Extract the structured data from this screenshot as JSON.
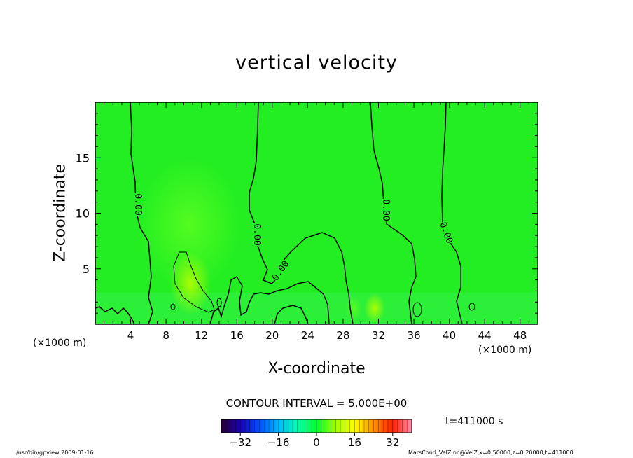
{
  "chart_data": {
    "type": "contour",
    "title": "vertical velocity",
    "xlabel": "X-coordinate",
    "ylabel": "Z-coordinate",
    "x_unit": "(×1000 m)",
    "xlim": [
      0,
      50
    ],
    "ylim": [
      0,
      20
    ],
    "x_ticks": [
      4,
      8,
      12,
      16,
      20,
      24,
      28,
      32,
      36,
      40,
      44,
      48
    ],
    "y_ticks": [
      5,
      10,
      15
    ],
    "contour_interval": "CONTOUR INTERVAL = 5.000E+00",
    "contour_label": "0.00",
    "colorbar": {
      "ticks": [
        -32,
        -16,
        0,
        16,
        32
      ],
      "range": [
        -40,
        40
      ],
      "colors": [
        "#2a0033",
        "#1a00b0",
        "#0050ff",
        "#00b8ff",
        "#00ffb0",
        "#00ff30",
        "#a0ff00",
        "#ffff00",
        "#ff9000",
        "#ff2000",
        "#ff90b0"
      ]
    },
    "time": "t=411000 s",
    "background_color": "#22ee22"
  },
  "footer": {
    "left": "/usr/bin/gpview   2009-01-16",
    "right": "MarsCond_VelZ.nc@VelZ,x=0:50000,z=0:20000,t=411000"
  }
}
